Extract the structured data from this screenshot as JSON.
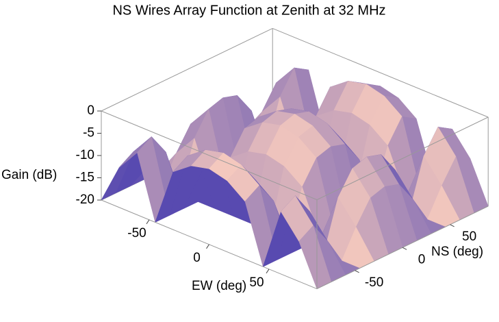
{
  "chart_data": {
    "type": "surface",
    "title": "NS Wires Array Function at Zenith at 32 MHz",
    "x_label": "EW (deg)",
    "y_label": "NS (deg)",
    "z_label": "Gain (dB)",
    "x": [
      -90,
      -75,
      -60,
      -45,
      -30,
      -15,
      0,
      15,
      30,
      45,
      60,
      75,
      90
    ],
    "y": [
      -90,
      -75,
      -60,
      -45,
      -30,
      -15,
      0,
      15,
      30,
      45,
      60,
      75,
      90
    ],
    "values": [
      [
        -20,
        -11,
        -6,
        -20,
        -7,
        -4,
        -3,
        -4,
        -7,
        -20,
        -6,
        -11,
        -20
      ],
      [
        -20,
        -9,
        -4,
        -20,
        -5,
        -2,
        -1,
        -2,
        -5,
        -20,
        -4,
        -9,
        -20
      ],
      [
        -20,
        -14,
        -9,
        -20,
        -10,
        -7,
        -6,
        -7,
        -10,
        -20,
        -9,
        -14,
        -20
      ],
      [
        -20,
        -20,
        -20,
        -20,
        -20,
        -20,
        -20,
        -20,
        -20,
        -20,
        -20,
        -20,
        -20
      ],
      [
        -20,
        -14,
        -9,
        -20,
        -10,
        -7,
        -6,
        -7,
        -10,
        -20,
        -9,
        -14,
        -20
      ],
      [
        -20,
        -9,
        -4,
        -20,
        -5,
        -2,
        -1,
        -2,
        -5,
        -20,
        -4,
        -9,
        -20
      ],
      [
        -20,
        -8,
        -3,
        -20,
        -4,
        -1,
        0,
        -1,
        -4,
        -20,
        -3,
        -8,
        -20
      ],
      [
        -20,
        -9,
        -4,
        -20,
        -5,
        -2,
        -1,
        -2,
        -5,
        -20,
        -4,
        -9,
        -20
      ],
      [
        -20,
        -14,
        -9,
        -20,
        -10,
        -7,
        -6,
        -7,
        -10,
        -20,
        -9,
        -14,
        -20
      ],
      [
        -20,
        -20,
        -20,
        -20,
        -20,
        -20,
        -20,
        -20,
        -20,
        -20,
        -20,
        -20,
        -20
      ],
      [
        -20,
        -14,
        -9,
        -20,
        -10,
        -7,
        -6,
        -7,
        -10,
        -20,
        -9,
        -14,
        -20
      ],
      [
        -20,
        -9,
        -4,
        -20,
        -5,
        -2,
        -1,
        -2,
        -5,
        -20,
        -4,
        -9,
        -20
      ],
      [
        -20,
        -11,
        -6,
        -20,
        -7,
        -4,
        -3,
        -4,
        -7,
        -20,
        -6,
        -11,
        -20
      ]
    ],
    "xlim": [
      -90,
      90
    ],
    "ylim": [
      -90,
      90
    ],
    "zlim": [
      -20,
      0
    ],
    "xticks": [
      -50,
      0,
      50
    ],
    "yticks": [
      -50,
      0,
      50
    ],
    "zticks": [
      -20,
      -15,
      -10,
      -5,
      0
    ]
  }
}
